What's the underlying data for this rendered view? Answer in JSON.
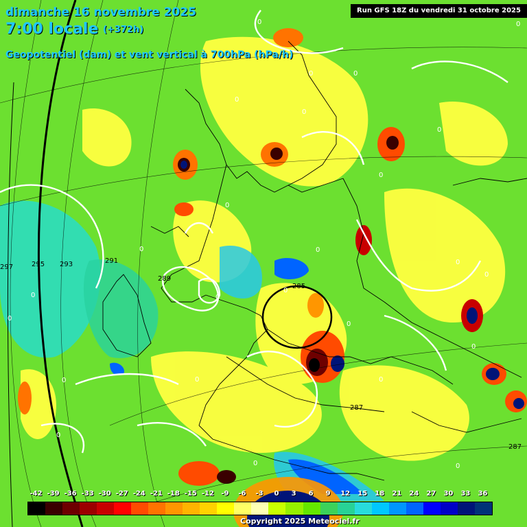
{
  "header": {
    "date": "dimanche 16 novembre 2025",
    "time": "7:00 locale",
    "lead": "(+372h)",
    "parameter": "Geopotentiel (dam) et vent vertical à 700hPa (hPa/h)",
    "run": "Run GFS 18Z du vendredi 31 octobre 2025"
  },
  "footer": {
    "copyright": "Copyright 2025 Meteociel.fr"
  },
  "legend": {
    "values": [
      "-42",
      "-39",
      "-36",
      "-33",
      "-30",
      "-27",
      "-24",
      "-21",
      "-18",
      "-15",
      "-12",
      "-9",
      "-6",
      "-3",
      "0",
      "3",
      "6",
      "9",
      "12",
      "15",
      "18",
      "21",
      "24",
      "27",
      "30",
      "33",
      "36"
    ],
    "colors": [
      "#000000",
      "#3a0000",
      "#6e0000",
      "#9c0000",
      "#c80000",
      "#ff0000",
      "#ff4b00",
      "#ff7300",
      "#ff9600",
      "#ffb400",
      "#ffd200",
      "#ffff00",
      "#ffff64",
      "#ffffb4",
      "#c8ff00",
      "#96f000",
      "#64e600",
      "#3cd25a",
      "#28d296",
      "#28dcdc",
      "#00c8ff",
      "#0096ff",
      "#0064ff",
      "#0000ff",
      "#0000c8",
      "#001478",
      "#003278"
    ]
  },
  "geopotential_labels": [
    "297",
    "295",
    "293",
    "291",
    "289",
    "285",
    "287",
    "287"
  ],
  "vertical_wind_labels": [
    "0",
    "0",
    "0",
    "0",
    "0",
    "0",
    "0",
    "0",
    "0",
    "0",
    "0",
    "0",
    "0",
    "0",
    "0",
    "0",
    "0",
    "0",
    "0",
    "0",
    "0",
    "0",
    "0",
    "0",
    "0"
  ]
}
